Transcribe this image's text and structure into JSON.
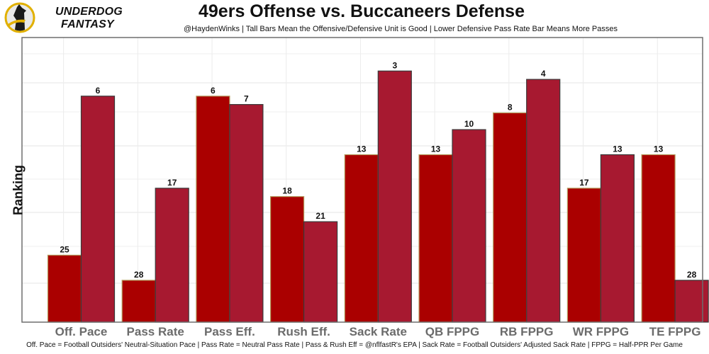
{
  "logo": {
    "icon": "underdog-dog-icon",
    "line1": "UNDERDOG",
    "line2": "FANTASY"
  },
  "colors": {
    "offense": "#aa0000",
    "offense_border": "#b3995d",
    "defense": "#a71930",
    "defense_border": "#3a3a3a",
    "category_text": "#6b6b6b"
  },
  "chart_data": {
    "type": "bar",
    "title": "49ers Offense vs. Buccaneers Defense",
    "subtitle": "@HaydenWinks | Tall Bars Mean the Offensive/Defensive Unit is Good | Lower Defensive Pass Rate Bar Means More Passes",
    "xlabel": "",
    "ylabel": "Ranking",
    "y_axis_reversed": true,
    "ylim": [
      33,
      -1
    ],
    "grid": true,
    "legend": "none",
    "categories": [
      "Off. Pace",
      "Pass Rate",
      "Pass Eff.",
      "Rush Eff.",
      "Sack Rate",
      "QB FPPG",
      "RB FPPG",
      "WR FPPG",
      "TE FPPG"
    ],
    "series": [
      {
        "name": "49ers Offense",
        "values": [
          25,
          28,
          6,
          18,
          13,
          13,
          8,
          17,
          13
        ]
      },
      {
        "name": "Buccaneers Defense",
        "values": [
          6,
          17,
          7,
          21,
          3,
          10,
          4,
          13,
          28
        ]
      }
    ],
    "footnote": "Off. Pace = Football Outsiders' Neutral-Situation Pace | Pass Rate = Neutral Pass Rate | Pass & Rush Eff = @nflfastR's EPA | Sack Rate = Football Outsiders' Adjusted Sack Rate | FPPG = Half-PPR Per Game"
  }
}
